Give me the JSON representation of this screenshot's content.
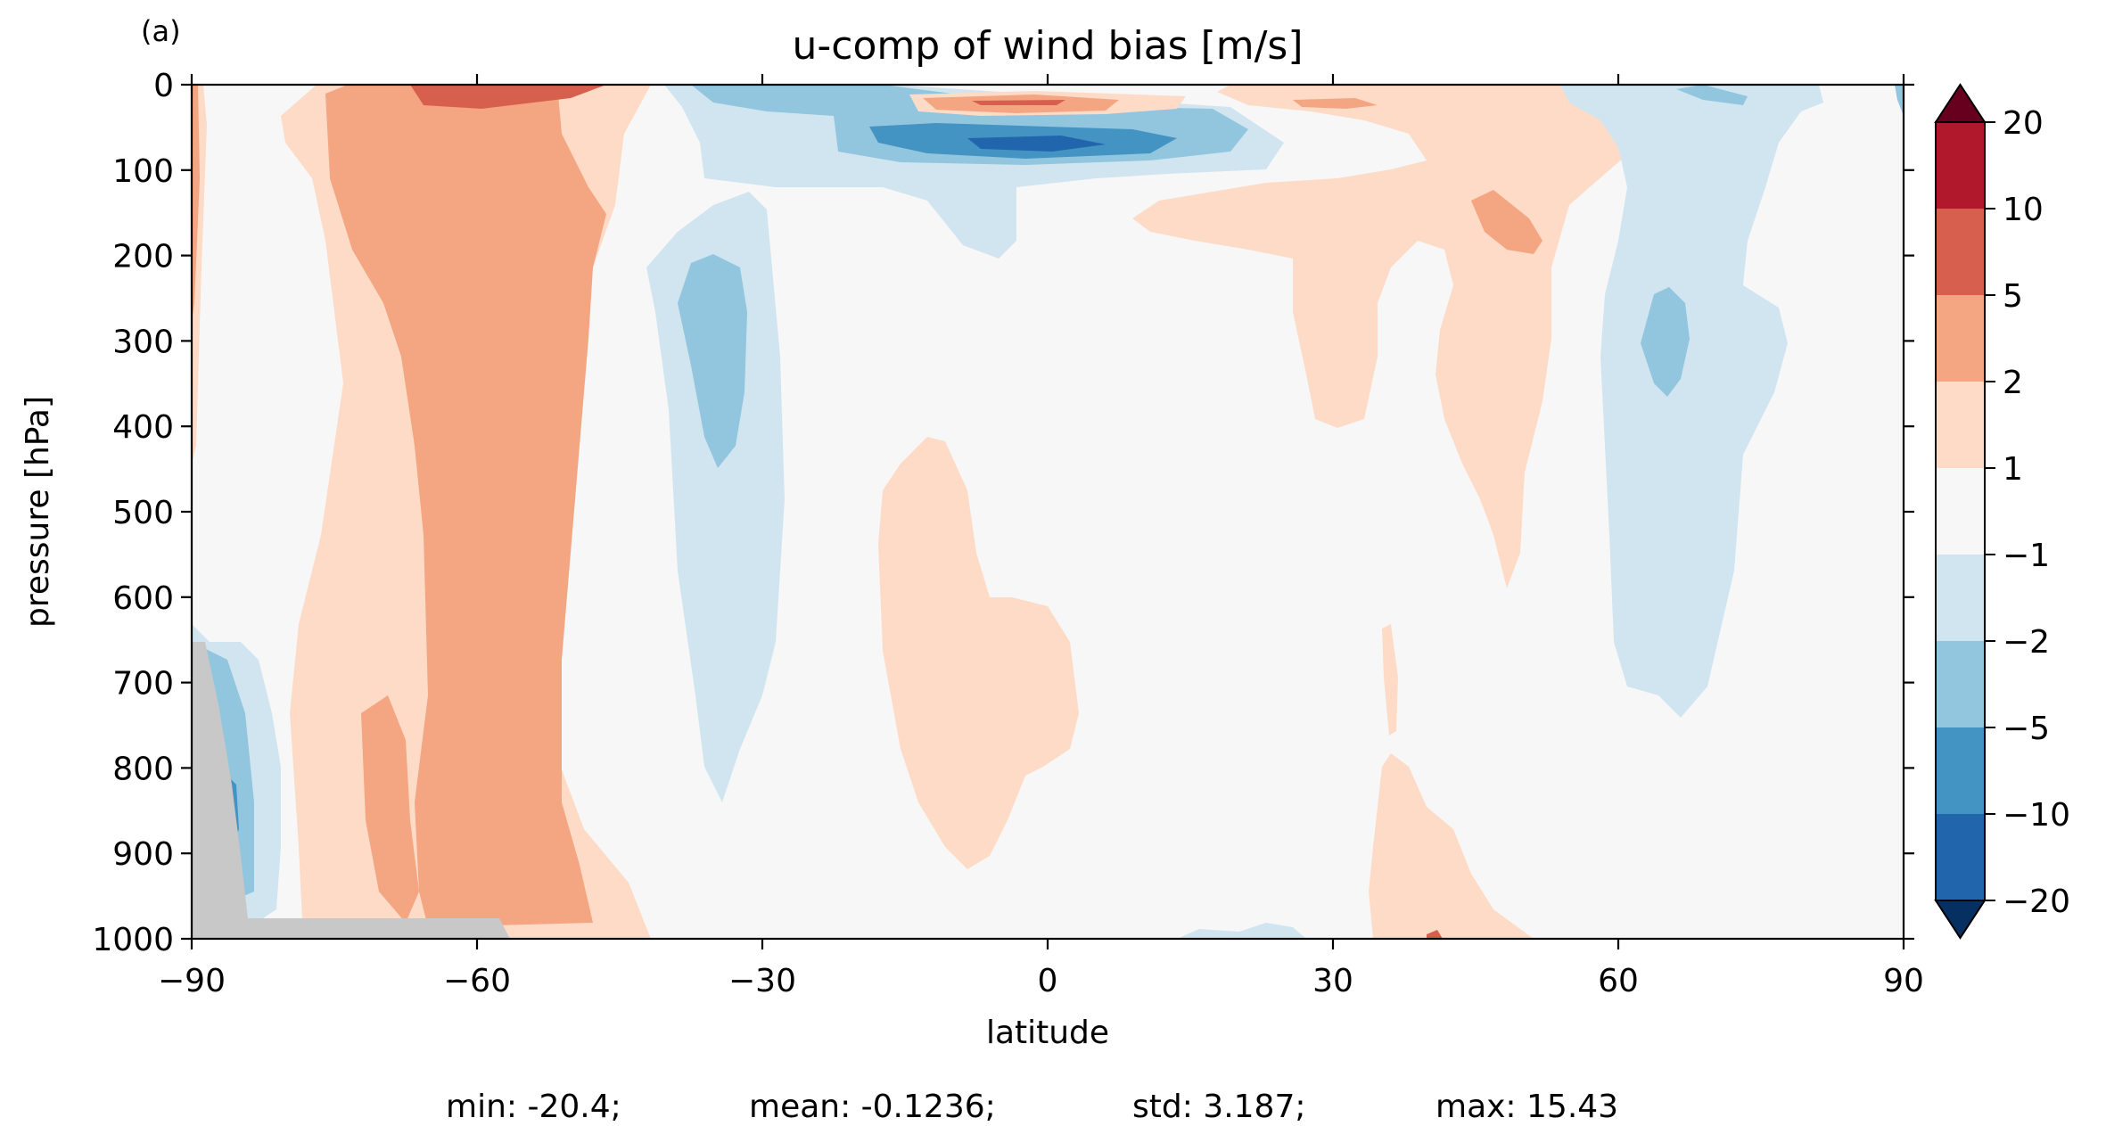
{
  "chart_data": {
    "type": "heatmap",
    "panel_label": "(a)",
    "title": "u-comp of wind bias [m/s]",
    "xlabel": "latitude",
    "ylabel": "pressure [hPa]",
    "xlim": [
      -90,
      90
    ],
    "ylim": [
      1000,
      0
    ],
    "xticks": [
      "−90",
      "−60",
      "−30",
      "0",
      "30",
      "60",
      "90"
    ],
    "yticks": [
      "0",
      "100",
      "200",
      "300",
      "400",
      "500",
      "600",
      "700",
      "800",
      "900",
      "1000"
    ],
    "colorbar": {
      "levels": [
        "20",
        "10",
        "5",
        "2",
        "1",
        "−1",
        "−2",
        "−5",
        "−10",
        "−20"
      ],
      "colors": [
        "#67001f",
        "#b2182b",
        "#d6604d",
        "#f4a582",
        "#fddbc7",
        "#f7f7f7",
        "#d1e5f0",
        "#92c5de",
        "#4393c3",
        "#2166ac",
        "#053061"
      ],
      "extend": "both"
    },
    "missing_color": "#c8c8c8",
    "stats": {
      "min": "min: -20.4;",
      "mean": "mean: -0.1236;",
      "std": "std: 3.187;",
      "max": "max: 15.43"
    }
  }
}
